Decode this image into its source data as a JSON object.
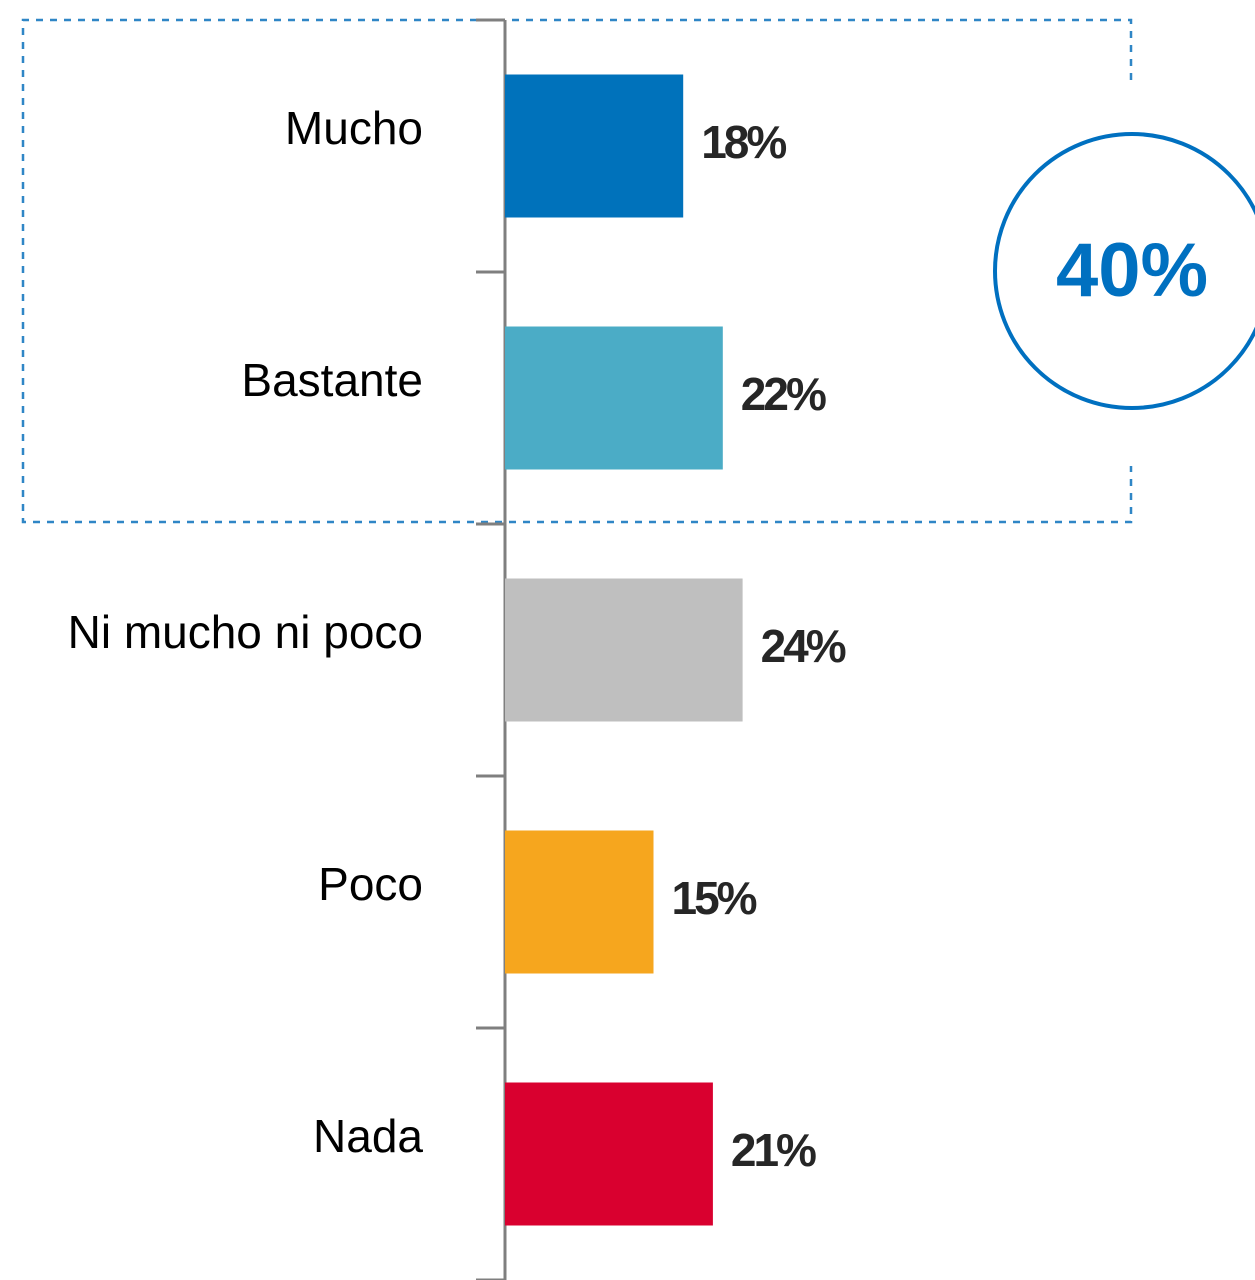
{
  "chart_data": {
    "type": "bar",
    "orientation": "horizontal",
    "categories": [
      "Mucho",
      "Bastante",
      "Ni mucho ni poco",
      "Poco",
      "Nada"
    ],
    "values": [
      18,
      22,
      24,
      15,
      21
    ],
    "value_labels": [
      "18%",
      "22%",
      "24%",
      "15%",
      "21%"
    ],
    "colors": [
      "#0072bb",
      "#4bacc6",
      "#bfbfbf",
      "#f6a61e",
      "#d9002f"
    ],
    "annotation": "40%"
  }
}
